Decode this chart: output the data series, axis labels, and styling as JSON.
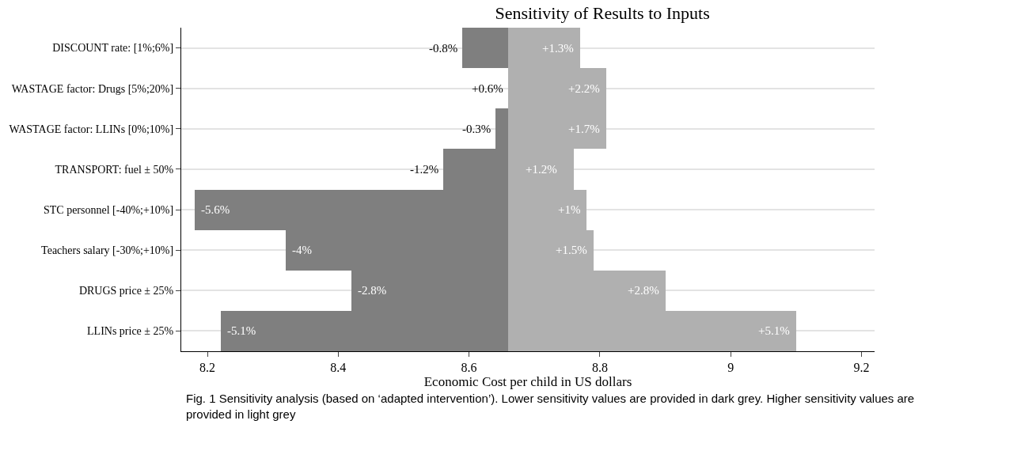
{
  "chart_data": {
    "type": "bar",
    "orientation": "horizontal",
    "title": "Sensitivity of Results to Inputs",
    "xlabel": "Economic Cost per child in US dollars",
    "categories": [
      "DISCOUNT rate: [1%;6%]",
      "WASTAGE factor: Drugs [5%;20%]",
      "WASTAGE factor: LLINs [0%;10%]",
      "TRANSPORT: fuel ± 50%",
      "STC personnel [-40%;+10%]",
      "Teachers salary [-30%;+10%]",
      "DRUGS price ± 25%",
      "LLINs price ± 25%"
    ],
    "series": [
      {
        "color": "#7f7f7f",
        "base": [
          8.66,
          null,
          8.66,
          8.66,
          8.66,
          8.66,
          8.66,
          8.66
        ],
        "values": [
          -0.07,
          null,
          -0.02,
          -0.1,
          -0.48,
          -0.34,
          -0.24,
          -0.44
        ]
      },
      {
        "color": "#b0b0b0",
        "base": [
          8.66,
          8.66,
          8.66,
          8.66,
          8.66,
          8.66,
          8.66,
          8.66
        ],
        "values": [
          0.11,
          0.15,
          0.15,
          0.1,
          0.12,
          0.13,
          0.24,
          0.44
        ]
      }
    ],
    "xlim": [
      8.16,
      9.22
    ],
    "xticks": [
      8.2,
      8.4,
      8.6,
      8.8,
      9,
      9.2
    ],
    "grid": "y",
    "annotations": [
      {
        "text": "-0.8%",
        "x": 8.59,
        "y": "DISCOUNT rate: [1%;6%]"
      },
      {
        "text": "+0.6%",
        "x": 8.66,
        "y": "WASTAGE factor: Drugs [5%;20%]"
      },
      {
        "text": "-0.3%",
        "x": 8.64,
        "y": "WASTAGE factor: LLINs [0%;10%]"
      },
      {
        "text": "-1.2%",
        "x": 8.56,
        "y": "TRANSPORT: fuel ± 50%"
      },
      {
        "text": "-5.6%",
        "x": 8.18,
        "y": "STC personnel [-40%;+10%]"
      },
      {
        "text": "-4%",
        "x": 8.32,
        "y": "Teachers salary [-30%;+10%]"
      },
      {
        "text": "-2.8%",
        "x": 8.42,
        "y": "DRUGS price ± 25%"
      },
      {
        "text": "-5.1%",
        "x": 8.22,
        "y": "LLINs price ± 25%"
      },
      {
        "text": "+1.3%",
        "x": 8.77,
        "y": "DISCOUNT rate: [1%;6%]"
      },
      {
        "text": "+2.2%",
        "x": 8.81,
        "y": "WASTAGE factor: Drugs [5%;20%]"
      },
      {
        "text": "+1.7%",
        "x": 8.81,
        "y": "WASTAGE factor: LLINs [0%;10%]"
      },
      {
        "text": "+1.2%",
        "x": 8.76,
        "y": "TRANSPORT: fuel ± 50%"
      },
      {
        "text": "+1%",
        "x": 8.78,
        "y": "STC personnel [-40%;+10%]"
      },
      {
        "text": "+1.5%",
        "x": 8.79,
        "y": "Teachers salary [-30%;+10%]"
      },
      {
        "text": "+2.8%",
        "x": 8.9,
        "y": "DRUGS price ± 25%"
      },
      {
        "text": "+5.1%",
        "x": 9.1,
        "y": "LLINs price ± 25%"
      },
      "Fig. 1 Sensitivity analysis (based on ‘adapted intervention’). Lower sensitivity values are provided in dark grey. Higher sensitivity values are provided in light grey"
    ]
  }
}
